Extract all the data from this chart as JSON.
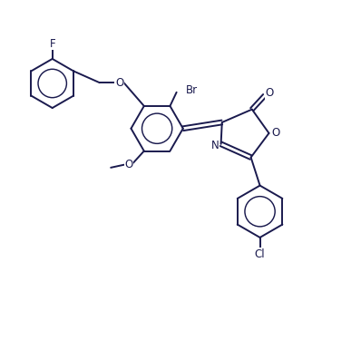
{
  "background_color": "#ffffff",
  "line_color": "#1a1a4e",
  "line_width": 1.4,
  "text_color": "#1a1a4e",
  "font_size": 8.5,
  "figsize": [
    3.98,
    3.75
  ],
  "dpi": 100,
  "xlim": [
    0,
    10
  ],
  "ylim": [
    0,
    9.4
  ],
  "labels": {
    "F": "F",
    "Br": "Br",
    "O_ether1": "O",
    "O_methoxy": "O",
    "N": "N",
    "O_ring": "O",
    "O_carbonyl": "O",
    "Cl": "Cl"
  }
}
